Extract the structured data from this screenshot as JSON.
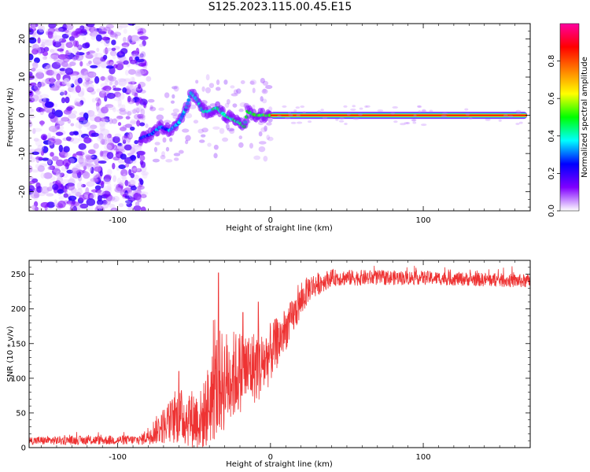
{
  "title": "S125.2023.115.00.45.E15",
  "chart_data": [
    {
      "type": "heatmap",
      "xlabel": "Height of straight line (km)",
      "ylabel": "Frequency (Hz)",
      "xlim": [
        -158,
        170
      ],
      "ylim": [
        -25,
        24
      ],
      "xticks": [
        -100,
        0,
        100
      ],
      "yticks": [
        -20,
        -10,
        0,
        10,
        20
      ],
      "colorbar": {
        "label": "Normalized spectral amplitude",
        "range": [
          0.0,
          1.0
        ],
        "ticks": [
          "0.0",
          "0.2",
          "0.4",
          "0.6",
          "0.8"
        ],
        "colors": [
          "#ffffff",
          "#8000ff",
          "#0000ff",
          "#00ffff",
          "#00ff00",
          "#ffff00",
          "#ff8000",
          "#ff0000",
          "#ff00a0"
        ]
      },
      "features": {
        "noise_region_x": [
          -158,
          -85
        ],
        "ridge": [
          {
            "x": -85,
            "y": -6
          },
          {
            "x": -78,
            "y": -5
          },
          {
            "x": -72,
            "y": -3
          },
          {
            "x": -66,
            "y": -4
          },
          {
            "x": -60,
            "y": -2
          },
          {
            "x": -55,
            "y": 2
          },
          {
            "x": -52,
            "y": 6
          },
          {
            "x": -48,
            "y": 4
          },
          {
            "x": -44,
            "y": 1
          },
          {
            "x": -40,
            "y": 1
          },
          {
            "x": -35,
            "y": 2
          },
          {
            "x": -30,
            "y": 0
          },
          {
            "x": -25,
            "y": -1
          },
          {
            "x": -20,
            "y": -2
          },
          {
            "x": -17,
            "y": -3
          },
          {
            "x": -15,
            "y": 1
          },
          {
            "x": -10,
            "y": 0
          },
          {
            "x": -5,
            "y": 0
          },
          {
            "x": 0,
            "y": 0
          }
        ],
        "steady_line": {
          "x_start": 0,
          "x_end": 168,
          "y": 0
        }
      }
    },
    {
      "type": "line",
      "xlabel": "Height of straight line (km)",
      "ylabel": "SNR (10 * v/v)",
      "xlim": [
        -158,
        170
      ],
      "ylim": [
        0,
        270
      ],
      "xticks": [
        -100,
        0,
        100
      ],
      "yticks": [
        0,
        50,
        100,
        150,
        200,
        250
      ],
      "color": "#ee3333",
      "envelope": [
        {
          "x": -158,
          "mean": 10,
          "amp": 6
        },
        {
          "x": -85,
          "mean": 11,
          "amp": 7
        },
        {
          "x": -75,
          "mean": 25,
          "amp": 20
        },
        {
          "x": -60,
          "mean": 45,
          "amp": 40
        },
        {
          "x": -45,
          "mean": 40,
          "amp": 45
        },
        {
          "x": -35,
          "mean": 90,
          "amp": 80
        },
        {
          "x": -20,
          "mean": 110,
          "amp": 60
        },
        {
          "x": -5,
          "mean": 120,
          "amp": 50
        },
        {
          "x": 10,
          "mean": 170,
          "amp": 30
        },
        {
          "x": 25,
          "mean": 230,
          "amp": 20
        },
        {
          "x": 40,
          "mean": 245,
          "amp": 12
        },
        {
          "x": 100,
          "mean": 245,
          "amp": 10
        },
        {
          "x": 170,
          "mean": 240,
          "amp": 10
        }
      ],
      "spikes": [
        {
          "x": -34,
          "y": 252
        },
        {
          "x": -18,
          "y": 195
        },
        {
          "x": -8,
          "y": 210
        },
        {
          "x": -60,
          "y": 110
        }
      ]
    }
  ]
}
